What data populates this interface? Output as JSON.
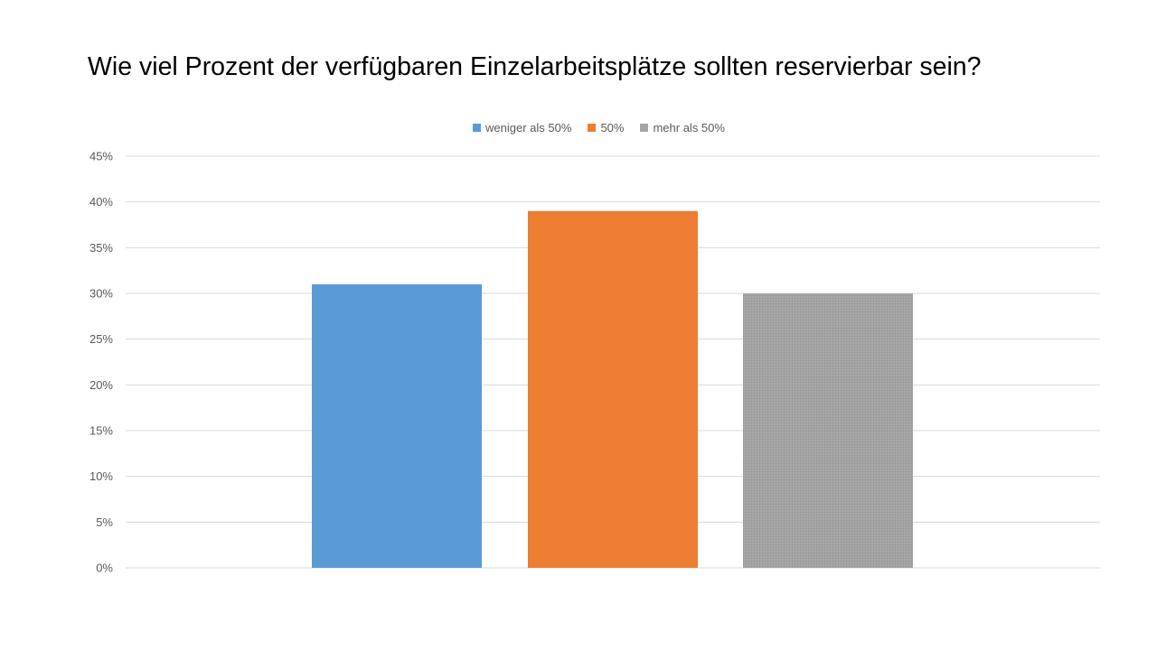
{
  "slide": {
    "title": "Wie viel Prozent der verfügbaren Einzelarbeitsplätze sollten reservierbar sein?"
  },
  "chart_data": {
    "type": "bar",
    "title": "",
    "xlabel": "",
    "ylabel": "",
    "ylim": [
      0,
      45
    ],
    "y_ticks": [
      "0%",
      "5%",
      "10%",
      "15%",
      "20%",
      "25%",
      "30%",
      "35%",
      "40%",
      "45%"
    ],
    "grid": true,
    "legend_position": "top",
    "series": [
      {
        "name": "weniger als 50%",
        "value": 31,
        "color": "#5B9BD5"
      },
      {
        "name": "50%",
        "value": 39,
        "color": "#ED7D31"
      },
      {
        "name": "mehr als 50%",
        "value": 30,
        "color": "#A5A5A5"
      }
    ]
  }
}
